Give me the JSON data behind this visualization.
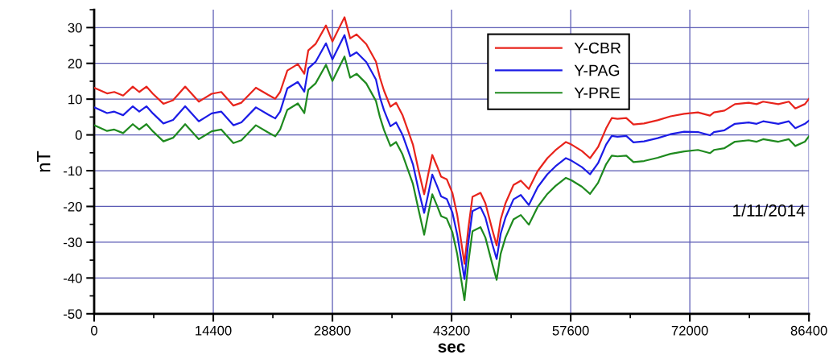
{
  "chart_data": {
    "type": "line",
    "xlabel": "sec",
    "ylabel": "nT",
    "xlim": [
      0,
      86400
    ],
    "ylim": [
      -50,
      35
    ],
    "xticks": [
      0,
      14400,
      28800,
      43200,
      57600,
      72000,
      86400
    ],
    "yticks": [
      -50,
      -40,
      -30,
      -20,
      -10,
      0,
      10,
      20,
      30
    ],
    "grid": true,
    "legend": "top right",
    "marker": "none",
    "line_style": "solid",
    "annotations": [
      "1/11/2014"
    ],
    "x": [
      0,
      1560,
      2430,
      3500,
      4670,
      5450,
      6320,
      7100,
      8370,
      9540,
      11000,
      12650,
      14200,
      15370,
      16830,
      17800,
      19550,
      21020,
      21890,
      22480,
      23350,
      24620,
      25400,
      25880,
      26760,
      28020,
      28800,
      30260,
      30940,
      31720,
      32890,
      34060,
      34540,
      35030,
      35810,
      36490,
      37260,
      37950,
      38530,
      39210,
      39890,
      40380,
      40870,
      41450,
      41940,
      42620,
      43300,
      43880,
      44760,
      45240,
      45730,
      46700,
      47290,
      48160,
      48650,
      49140,
      49720,
      50690,
      51570,
      52540,
      53610,
      54780,
      55750,
      57020,
      57700,
      58960,
      59940,
      60910,
      61880,
      62560,
      63250,
      64320,
      65190,
      66460,
      68110,
      69670,
      71320,
      72980,
      74430,
      74920,
      76190,
      77450,
      79110,
      80080,
      80860,
      82700,
      83970,
      84750,
      85910,
      86400
    ],
    "series": [
      {
        "name": "Y-CBR",
        "color": "#e8241c",
        "values": [
          13.2,
          11.6,
          12,
          11,
          13.5,
          12,
          13.5,
          11.5,
          8.7,
          9.7,
          13.5,
          9.3,
          11.5,
          12,
          8.2,
          9,
          13.2,
          11.2,
          10.1,
          12,
          18,
          19.8,
          17.1,
          23.6,
          25.4,
          30.6,
          26.1,
          32.9,
          27,
          28.1,
          25.4,
          20.5,
          16,
          12.4,
          7.9,
          9,
          5.6,
          1.1,
          -2.7,
          -9.9,
          -16.6,
          -11,
          -5.6,
          -8.8,
          -11.7,
          -12.4,
          -16.2,
          -22.3,
          -36,
          -25.9,
          -17.3,
          -16.2,
          -19.1,
          -26.8,
          -30.9,
          -23.6,
          -19.1,
          -14,
          -12.8,
          -15.1,
          -10.1,
          -6.5,
          -4.3,
          -2,
          -2.7,
          -4.5,
          -6.5,
          -3.4,
          1.8,
          4.7,
          4.5,
          4.7,
          2.9,
          3.2,
          4.1,
          5.2,
          5.9,
          6.3,
          5.4,
          6.3,
          6.8,
          8.6,
          9,
          8.6,
          9.3,
          8.6,
          9.3,
          7.4,
          8.6,
          10.1
        ]
      },
      {
        "name": "Y-PAG",
        "color": "#1c1ce6",
        "values": [
          7.7,
          6.1,
          6.5,
          5.5,
          8,
          6.5,
          8,
          6,
          3.2,
          4.2,
          8,
          3.8,
          6,
          6.5,
          2.7,
          3.5,
          7.7,
          5.7,
          4.6,
          6.5,
          13,
          14.8,
          12.1,
          18.6,
          20.4,
          25.6,
          21.1,
          27.9,
          22,
          23.1,
          20.4,
          15.5,
          10.5,
          6.9,
          2.4,
          3.5,
          0.1,
          -4.4,
          -8.2,
          -15.4,
          -21.8,
          -16.5,
          -11.1,
          -14.3,
          -17.2,
          -17.9,
          -21.7,
          -27.8,
          -40.3,
          -29.9,
          -21.3,
          -20.2,
          -23.1,
          -30.8,
          -34.7,
          -27.6,
          -23.1,
          -18,
          -16.8,
          -19.6,
          -14.6,
          -11,
          -8.8,
          -6.5,
          -7.2,
          -9,
          -11,
          -7.9,
          -2.7,
          -0.3,
          -0.5,
          -0.3,
          -2.1,
          -1.8,
          -0.9,
          0.2,
          0.9,
          0.8,
          -0.1,
          0.8,
          1.3,
          3.1,
          3.5,
          3.1,
          3.8,
          3.1,
          3.8,
          1.9,
          3.1,
          4
        ]
      },
      {
        "name": "Y-PRE",
        "color": "#1f8a1f",
        "values": [
          2.7,
          1.1,
          1.5,
          0.5,
          3,
          1.5,
          3,
          1,
          -1.8,
          -0.8,
          3,
          -1.2,
          1,
          1.5,
          -2.3,
          -1.5,
          2.7,
          0.7,
          -0.4,
          1.5,
          7,
          8.8,
          6.1,
          12.6,
          14.4,
          19.6,
          15.1,
          21.9,
          16,
          17.1,
          14.4,
          9.5,
          5,
          1.4,
          -3.1,
          -2,
          -5.4,
          -9.9,
          -13.7,
          -20.9,
          -27.9,
          -22,
          -16.6,
          -19.8,
          -22.7,
          -23.4,
          -27.2,
          -33.3,
          -46.2,
          -35.5,
          -26.9,
          -25.8,
          -28.7,
          -36.4,
          -40.5,
          -33.2,
          -28.7,
          -23.6,
          -22.4,
          -25.1,
          -20.1,
          -16.5,
          -14.3,
          -12,
          -12.7,
          -14.5,
          -16.5,
          -13.4,
          -8.2,
          -5.8,
          -6,
          -5.8,
          -7.6,
          -7.3,
          -6.4,
          -5.3,
          -4.6,
          -4.2,
          -5.1,
          -4.2,
          -3.7,
          -1.9,
          -1.5,
          -1.9,
          -1.2,
          -1.9,
          -1.2,
          -3.1,
          -1.9,
          -0.4
        ]
      }
    ]
  }
}
